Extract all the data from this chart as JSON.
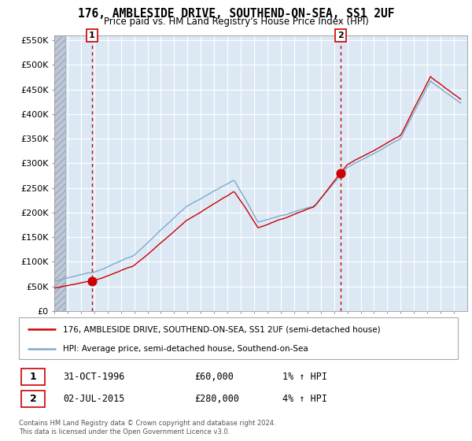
{
  "title": "176, AMBLESIDE DRIVE, SOUTHEND-ON-SEA, SS1 2UF",
  "subtitle": "Price paid vs. HM Land Registry's House Price Index (HPI)",
  "ylim": [
    0,
    560000
  ],
  "yticks": [
    0,
    50000,
    100000,
    150000,
    200000,
    250000,
    300000,
    350000,
    400000,
    450000,
    500000,
    550000
  ],
  "ytick_labels": [
    "£0",
    "£50K",
    "£100K",
    "£150K",
    "£200K",
    "£250K",
    "£300K",
    "£350K",
    "£400K",
    "£450K",
    "£500K",
    "£550K"
  ],
  "xstart": 1994,
  "xend": 2025,
  "sale1_year": 1996.83,
  "sale1_price": 60000,
  "sale2_year": 2015.5,
  "sale2_price": 280000,
  "legend_line1": "176, AMBLESIDE DRIVE, SOUTHEND-ON-SEA, SS1 2UF (semi-detached house)",
  "legend_line2": "HPI: Average price, semi-detached house, Southend-on-Sea",
  "footer": "Contains HM Land Registry data © Crown copyright and database right 2024.\nThis data is licensed under the Open Government Licence v3.0.",
  "chart_bg": "#dce9f5",
  "hatch_color": "#c0c8d8",
  "hpi_color": "#7eaacc",
  "price_color": "#cc0000",
  "marker_color": "#cc0000",
  "vline_color": "#cc0000",
  "grid_color": "#ffffff",
  "background_color": "#ffffff"
}
